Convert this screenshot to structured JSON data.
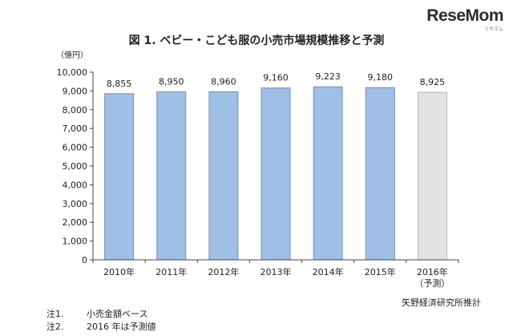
{
  "brand": {
    "logo_main": "ReseMom",
    "logo_sub": "リセマム"
  },
  "chart_data": {
    "type": "bar",
    "title": "図 1.  ベビー・こども服の小売市場規模推移と予測",
    "ylabel": "（億円）",
    "xlabel": "",
    "ylim": [
      0,
      10000
    ],
    "yticks": [
      "0",
      "1,000",
      "2,000",
      "3,000",
      "4,000",
      "5,000",
      "6,000",
      "7,000",
      "8,000",
      "9,000",
      "10,000"
    ],
    "ytick_values": [
      0,
      1000,
      2000,
      3000,
      4000,
      5000,
      6000,
      7000,
      8000,
      9000,
      10000
    ],
    "grid": false,
    "legend": "none",
    "categories": [
      "2010年",
      "2011年",
      "2012年",
      "2013年",
      "2014年",
      "2015年",
      "2016年"
    ],
    "category_sublabels": [
      "",
      "",
      "",
      "",
      "",
      "",
      "（予測）"
    ],
    "values": [
      8855,
      8950,
      8960,
      9160,
      9223,
      9180,
      8925
    ],
    "value_labels": [
      "8,855",
      "8,950",
      "8,960",
      "9,160",
      "9,223",
      "9,180",
      "8,925"
    ],
    "forecast": [
      false,
      false,
      false,
      false,
      false,
      false,
      true
    ],
    "colors": {
      "actual": "#9fbfe6",
      "actual_edge": "#6f93c4",
      "forecast": "#e2e2e2",
      "forecast_edge": "#b5b5b5",
      "axis": "#444444"
    }
  },
  "source": "矢野経済研究所推計",
  "notes": [
    {
      "num": "注1.",
      "text": "小売金額ベース"
    },
    {
      "num": "注2.",
      "text": "2016 年は予測値"
    }
  ]
}
